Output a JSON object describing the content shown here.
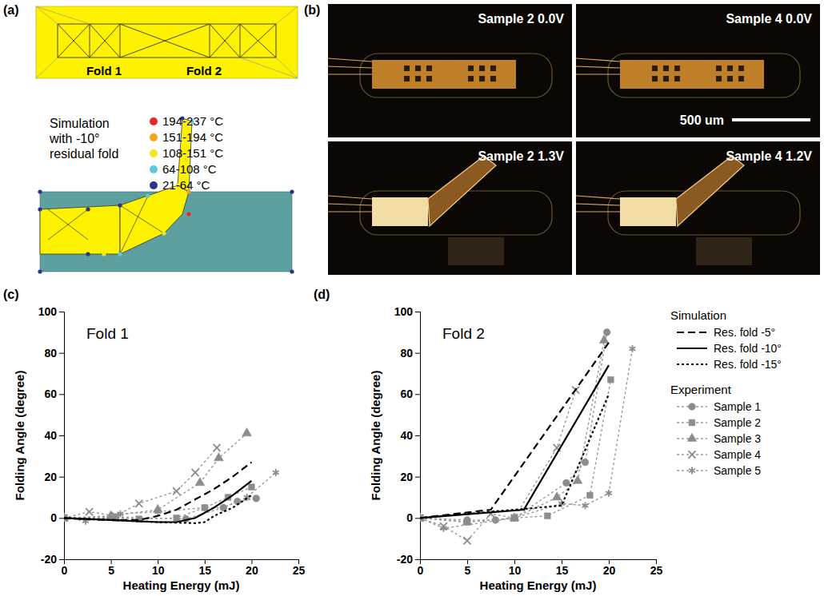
{
  "panels": {
    "a": "(a)",
    "b": "(b)",
    "c": "(c)",
    "d": "(d)"
  },
  "diagram": {
    "fold_labels": [
      "Fold 1",
      "Fold 2"
    ],
    "caption": "Simulation with -10° residual fold",
    "temperature_legend": [
      {
        "label": "194-237 °C",
        "color": "#e8262a"
      },
      {
        "label": "151-194 °C",
        "color": "#f7a21b"
      },
      {
        "label": "108-151 °C",
        "color": "#f2e51c"
      },
      {
        "label": "64-108 °C",
        "color": "#5cc8d8"
      },
      {
        "label": "21-64 °C",
        "color": "#27348b"
      }
    ]
  },
  "photos": {
    "panels": [
      {
        "label": "Sample 2 0.0V"
      },
      {
        "label": "Sample 4 0.0V"
      },
      {
        "label": "Sample 2 1.3V"
      },
      {
        "label": "Sample 4 1.2V"
      }
    ],
    "scale_bar": "500 um"
  },
  "chart_data": [
    {
      "type": "line",
      "title": "Fold 1",
      "xlabel": "Heating Energy (mJ)",
      "ylabel": "Folding Angle (degree)",
      "xlim": [
        0,
        25
      ],
      "ylim": [
        -20,
        100
      ],
      "xticks": [
        0,
        5,
        10,
        15,
        20,
        25
      ],
      "yticks": [
        -20,
        0,
        20,
        40,
        60,
        80,
        100
      ],
      "grid": false,
      "series": [
        {
          "color": "#000000",
          "line_style": "dashed",
          "x": [
            0,
            2,
            5,
            8,
            10,
            12,
            14,
            16,
            18,
            20
          ],
          "values": [
            0,
            -0.5,
            -1,
            -1,
            1,
            4,
            9,
            14,
            20,
            27
          ]
        },
        {
          "color": "#000000",
          "line_style": "solid",
          "x": [
            0,
            5,
            10,
            12,
            14,
            16,
            18,
            20
          ],
          "values": [
            0,
            -1,
            -2,
            -2,
            0,
            5,
            11,
            18
          ]
        },
        {
          "color": "#000000",
          "line_style": "dotted",
          "x": [
            0,
            5,
            10,
            14,
            15,
            16,
            18,
            20
          ],
          "values": [
            0,
            -1,
            -2,
            -2.5,
            -2,
            1,
            5,
            11
          ]
        },
        {
          "color": "#999999",
          "line_style": "dotted",
          "marker": "circle",
          "x": [
            0,
            5.5,
            13,
            17,
            18.5,
            20.5
          ],
          "values": [
            0,
            0.5,
            -0.5,
            5,
            8,
            9.5
          ]
        },
        {
          "color": "#999999",
          "line_style": "dotted",
          "marker": "square",
          "x": [
            0,
            5.5,
            8,
            12,
            15,
            17.5,
            20
          ],
          "values": [
            0,
            0,
            -0.5,
            0,
            5,
            10,
            15
          ]
        },
        {
          "color": "#999999",
          "line_style": "dotted",
          "marker": "triangle",
          "x": [
            0,
            5,
            10,
            14.5,
            16.5,
            19.5
          ],
          "values": [
            0,
            1,
            4,
            17,
            29,
            41
          ]
        },
        {
          "color": "#999999",
          "line_style": "dotted",
          "marker": "x",
          "x": [
            0,
            2.7,
            5.5,
            8,
            12,
            14,
            16.3
          ],
          "values": [
            0,
            3,
            1,
            7,
            13,
            22,
            34
          ]
        },
        {
          "color": "#999999",
          "line_style": "dotted",
          "marker": "asterisk",
          "x": [
            0,
            2.3,
            6,
            10,
            15,
            17,
            19.5,
            22.6
          ],
          "values": [
            0,
            -1.5,
            2,
            3,
            5,
            5,
            10,
            22
          ]
        }
      ]
    },
    {
      "type": "line",
      "title": "Fold 2",
      "xlabel": "Heating Energy (mJ)",
      "ylabel": "Folding Angle (degree)",
      "xlim": [
        0,
        25
      ],
      "ylim": [
        -20,
        100
      ],
      "xticks": [
        0,
        5,
        10,
        15,
        20,
        25
      ],
      "yticks": [
        -20,
        0,
        20,
        40,
        60,
        80,
        100
      ],
      "grid": false,
      "legend": "right",
      "legend_groups": [
        "Simulation",
        "Experiment"
      ],
      "series": [
        {
          "name": "Res. fold -5°",
          "color": "#000000",
          "line_style": "dashed",
          "x": [
            0,
            7.5,
            20
          ],
          "values": [
            0,
            4,
            85
          ]
        },
        {
          "name": "Res. fold -10°",
          "color": "#000000",
          "line_style": "solid",
          "x": [
            0,
            11,
            20
          ],
          "values": [
            0,
            4,
            74
          ]
        },
        {
          "name": "Res. fold -15°",
          "color": "#000000",
          "line_style": "dotted",
          "x": [
            0,
            15,
            20
          ],
          "values": [
            0,
            6,
            60
          ]
        },
        {
          "name": "Sample 1",
          "color": "#999999",
          "line_style": "dotted",
          "marker": "circle",
          "x": [
            0,
            5,
            8,
            10,
            15.5,
            17.5,
            19.8
          ],
          "values": [
            0,
            -1,
            -1,
            0,
            17,
            27,
            90
          ]
        },
        {
          "name": "Sample 2",
          "color": "#999999",
          "line_style": "dotted",
          "marker": "square",
          "x": [
            0,
            5,
            10,
            13.5,
            18,
            20.2
          ],
          "values": [
            0,
            -2,
            0,
            1,
            11,
            67
          ]
        },
        {
          "name": "Sample 3",
          "color": "#999999",
          "line_style": "dotted",
          "marker": "triangle",
          "x": [
            0,
            5,
            10,
            14.5,
            16.7,
            19.5
          ],
          "values": [
            0,
            -2,
            0,
            10,
            18,
            86
          ]
        },
        {
          "name": "Sample 4",
          "color": "#999999",
          "line_style": "dotted",
          "marker": "x",
          "x": [
            0,
            2.5,
            5,
            7.5,
            10,
            14.5,
            16.5
          ],
          "values": [
            0,
            -4,
            -11,
            2,
            0,
            34,
            62
          ]
        },
        {
          "name": "Sample 5",
          "color": "#999999",
          "line_style": "dotted",
          "marker": "asterisk",
          "x": [
            0,
            2.5,
            10,
            15,
            17.5,
            20,
            22.5
          ],
          "values": [
            0,
            -5,
            0,
            7,
            6,
            12,
            82
          ]
        }
      ]
    }
  ]
}
